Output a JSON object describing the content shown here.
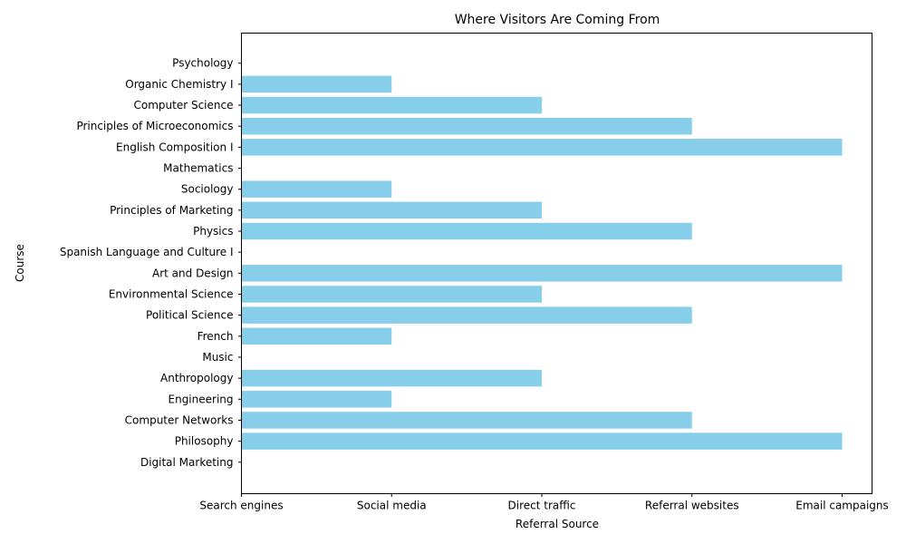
{
  "chart_data": {
    "type": "bar",
    "orientation": "horizontal",
    "title": "Where Visitors Are Coming From",
    "xlabel": "Referral Source",
    "ylabel": "Course",
    "x_categories": [
      "Search engines",
      "Social media",
      "Direct traffic",
      "Referral websites",
      "Email campaigns"
    ],
    "categories": [
      "Digital Marketing",
      "Philosophy",
      "Computer Networks",
      "Engineering",
      "Anthropology",
      "Music",
      "French",
      "Political Science",
      "Environmental Science",
      "Art and Design",
      "Spanish Language and Culture I",
      "Physics",
      "Principles of Marketing",
      "Sociology",
      "Mathematics",
      "English Composition I",
      "Principles of Microeconomics",
      "Computer Science",
      "Organic Chemistry I",
      "Psychology"
    ],
    "values": [
      "Search engines",
      "Email campaigns",
      "Referral websites",
      "Social media",
      "Direct traffic",
      "Search engines",
      "Social media",
      "Referral websites",
      "Direct traffic",
      "Email campaigns",
      "Search engines",
      "Referral websites",
      "Direct traffic",
      "Social media",
      "Search engines",
      "Email campaigns",
      "Referral websites",
      "Direct traffic",
      "Social media",
      "Search engines"
    ],
    "bar_color": "#87ceeb",
    "grid": false,
    "legend": "none"
  }
}
